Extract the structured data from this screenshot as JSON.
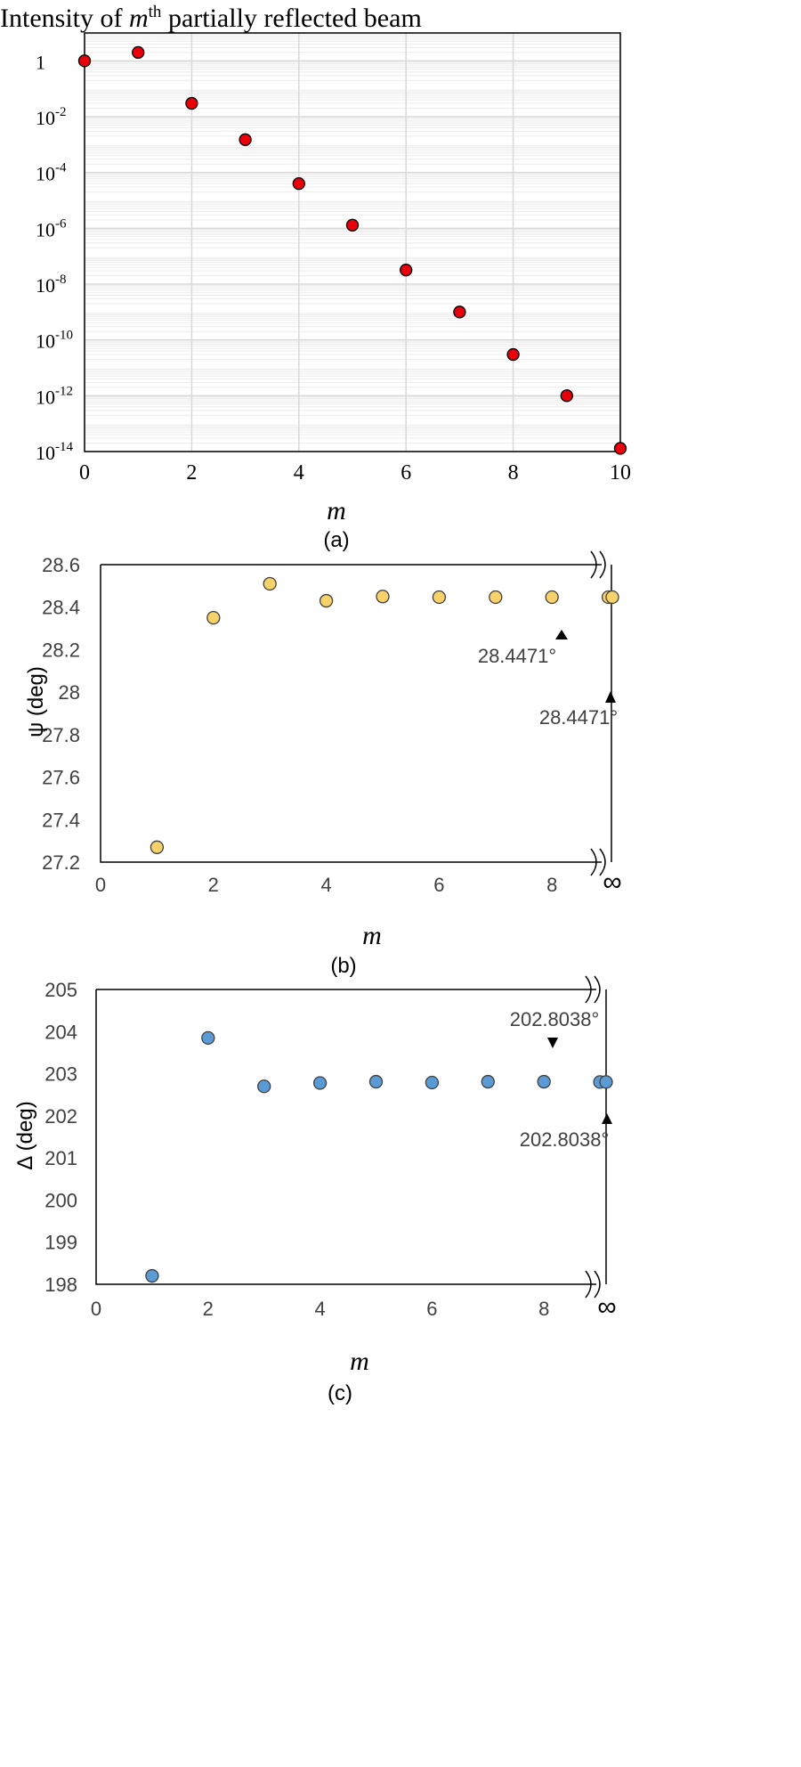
{
  "panels": [
    {
      "id": "a",
      "caption": "(a)",
      "title_pre": "Intensity of ",
      "title_var": "m",
      "title_sup": "th",
      "title_post": " partially reflected beam",
      "xlabel": "m",
      "x_ticks": [
        "0",
        "2",
        "4",
        "6",
        "8",
        "10"
      ],
      "y_ticks": [
        {
          "base": "1",
          "exp": ""
        },
        {
          "base": "10",
          "exp": "-2"
        },
        {
          "base": "10",
          "exp": "-4"
        },
        {
          "base": "10",
          "exp": "-6"
        },
        {
          "base": "10",
          "exp": "-8"
        },
        {
          "base": "10",
          "exp": "-10"
        },
        {
          "base": "10",
          "exp": "-12"
        },
        {
          "base": "10",
          "exp": "-14"
        }
      ]
    },
    {
      "id": "b",
      "caption": "(b)",
      "ylabel": "ψ (deg)",
      "xlabel": "m",
      "x_ticks": [
        "0",
        "2",
        "4",
        "6",
        "8"
      ],
      "x_inf_label": "∞",
      "y_ticks": [
        "28.6",
        "28.4",
        "28.2",
        "28",
        "27.8",
        "27.6",
        "27.4",
        "27.2"
      ],
      "annotation_point": "28.4471°",
      "annotation_inf": "28.4471°"
    },
    {
      "id": "c",
      "caption": "(c)",
      "ylabel": "Δ (deg)",
      "xlabel": "m",
      "x_ticks": [
        "0",
        "2",
        "4",
        "6",
        "8"
      ],
      "x_inf_label": "∞",
      "y_ticks": [
        "205",
        "204",
        "203",
        "202",
        "201",
        "200",
        "199",
        "198"
      ],
      "annotation_point": "202.8038°",
      "annotation_inf": "202.8038°"
    }
  ],
  "colors": {
    "panel_a_marker": "#e8000b",
    "panel_b_marker": "#f7d26b",
    "panel_c_marker": "#5b9bd5",
    "grid": "#d9d9d9",
    "axis": "#000000",
    "text": "#404040"
  },
  "chart_data": [
    {
      "type": "scatter",
      "title": "Intensity of mth partially reflected beam",
      "xlabel": "m",
      "ylabel": "",
      "y_scale": "log",
      "xlim": [
        0,
        10
      ],
      "ylim": [
        1e-14,
        10
      ],
      "grid": true,
      "x": [
        0,
        1,
        2,
        3,
        4,
        5,
        6,
        7,
        8,
        9,
        10
      ],
      "y": [
        1,
        2.0,
        0.03,
        0.0015,
        4e-05,
        1.3e-06,
        3.2e-08,
        1e-09,
        3e-11,
        1e-12,
        1.3e-14
      ]
    },
    {
      "type": "scatter",
      "xlabel": "m",
      "ylabel": "ψ (deg)",
      "xlim": [
        0,
        10
      ],
      "ylim": [
        27.2,
        28.6
      ],
      "grid": false,
      "x": [
        1,
        2,
        3,
        4,
        5,
        6,
        7,
        8,
        9,
        "∞"
      ],
      "y": [
        27.27,
        28.35,
        28.51,
        28.43,
        28.45,
        28.447,
        28.447,
        28.447,
        28.4471,
        28.4471
      ]
    },
    {
      "type": "scatter",
      "xlabel": "m",
      "ylabel": "Δ (deg)",
      "xlim": [
        0,
        10
      ],
      "ylim": [
        198,
        205
      ],
      "grid": false,
      "x": [
        1,
        2,
        3,
        4,
        5,
        6,
        7,
        8,
        9,
        "∞"
      ],
      "y": [
        198.2,
        203.85,
        202.7,
        202.78,
        202.81,
        202.79,
        202.81,
        202.81,
        202.8038,
        202.8038
      ]
    }
  ]
}
